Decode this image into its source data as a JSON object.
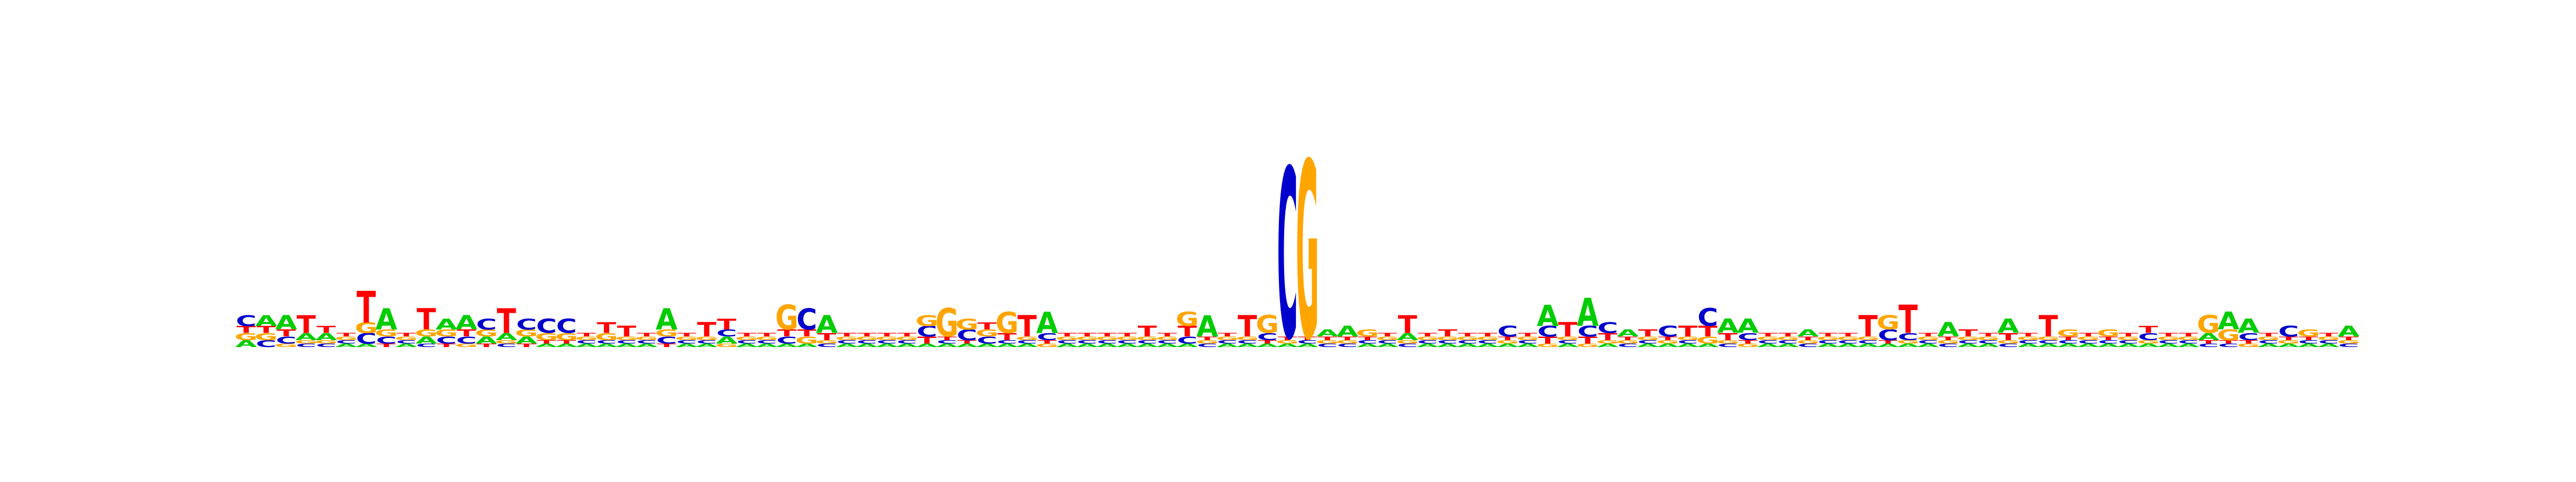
{
  "chart_data": {
    "type": "sequence-logo",
    "colors": {
      "A": "#00cc00",
      "C": "#0000cc",
      "G": "#ffa500",
      "T": "#ff0000"
    },
    "positions": [
      {
        "A": 0.02,
        "C": 0.03,
        "G": 0.02,
        "T": 0.02
      },
      {
        "A": 0.03,
        "C": 0.02,
        "G": 0.02,
        "T": 0.02
      },
      {
        "A": 0.04,
        "C": 0.02,
        "G": 0.01,
        "T": 0.02
      },
      {
        "A": 0.02,
        "C": 0.01,
        "G": 0.01,
        "T": 0.05
      },
      {
        "A": 0.02,
        "C": 0.01,
        "G": 0.01,
        "T": 0.02
      },
      {
        "A": 0.01,
        "C": 0.01,
        "G": 0.01,
        "T": 0.01
      },
      {
        "A": 0.01,
        "C": 0.03,
        "G": 0.03,
        "T": 0.09
      },
      {
        "A": 0.06,
        "C": 0.02,
        "G": 0.02,
        "T": 0.01
      },
      {
        "A": 0.01,
        "C": 0.01,
        "G": 0.01,
        "T": 0.01
      },
      {
        "A": 0.02,
        "C": 0.01,
        "G": 0.02,
        "T": 0.06
      },
      {
        "A": 0.03,
        "C": 0.02,
        "G": 0.02,
        "T": 0.01
      },
      {
        "A": 0.04,
        "C": 0.02,
        "G": 0.01,
        "T": 0.02
      },
      {
        "A": 0.02,
        "C": 0.03,
        "G": 0.02,
        "T": 0.01
      },
      {
        "A": 0.02,
        "C": 0.01,
        "G": 0.01,
        "T": 0.07
      },
      {
        "A": 0.02,
        "C": 0.03,
        "G": 0.02,
        "T": 0.01
      },
      {
        "A": 0.01,
        "C": 0.04,
        "G": 0.02,
        "T": 0.01
      },
      {
        "A": 0.01,
        "C": 0.04,
        "G": 0.02,
        "T": 0.01
      },
      {
        "A": 0.01,
        "C": 0.01,
        "G": 0.01,
        "T": 0.01
      },
      {
        "A": 0.01,
        "C": 0.01,
        "G": 0.02,
        "T": 0.03
      },
      {
        "A": 0.01,
        "C": 0.01,
        "G": 0.01,
        "T": 0.03
      },
      {
        "A": 0.01,
        "C": 0.01,
        "G": 0.01,
        "T": 0.01
      },
      {
        "A": 0.06,
        "C": 0.02,
        "G": 0.02,
        "T": 0.01
      },
      {
        "A": 0.01,
        "C": 0.01,
        "G": 0.01,
        "T": 0.01
      },
      {
        "A": 0.01,
        "C": 0.01,
        "G": 0.01,
        "T": 0.04
      },
      {
        "A": 0.02,
        "C": 0.02,
        "G": 0.01,
        "T": 0.03
      },
      {
        "A": 0.01,
        "C": 0.01,
        "G": 0.01,
        "T": 0.01
      },
      {
        "A": 0.01,
        "C": 0.01,
        "G": 0.01,
        "T": 0.01
      },
      {
        "A": 0.01,
        "C": 0.02,
        "G": 0.07,
        "T": 0.02
      },
      {
        "A": 0.01,
        "C": 0.06,
        "G": 0.02,
        "T": 0.02
      },
      {
        "A": 0.05,
        "C": 0.01,
        "G": 0.01,
        "T": 0.02
      },
      {
        "A": 0.01,
        "C": 0.01,
        "G": 0.01,
        "T": 0.01
      },
      {
        "A": 0.01,
        "C": 0.01,
        "G": 0.01,
        "T": 0.01
      },
      {
        "A": 0.01,
        "C": 0.01,
        "G": 0.01,
        "T": 0.01
      },
      {
        "A": 0.01,
        "C": 0.01,
        "G": 0.01,
        "T": 0.01
      },
      {
        "A": 0.01,
        "C": 0.03,
        "G": 0.03,
        "T": 0.02
      },
      {
        "A": 0.01,
        "C": 0.01,
        "G": 0.08,
        "T": 0.01
      },
      {
        "A": 0.01,
        "C": 0.03,
        "G": 0.03,
        "T": 0.01
      },
      {
        "A": 0.01,
        "C": 0.02,
        "G": 0.02,
        "T": 0.02
      },
      {
        "A": 0.01,
        "C": 0.01,
        "G": 0.06,
        "T": 0.02
      },
      {
        "A": 0.01,
        "C": 0.01,
        "G": 0.01,
        "T": 0.06
      },
      {
        "A": 0.06,
        "C": 0.02,
        "G": 0.01,
        "T": 0.01
      },
      {
        "A": 0.01,
        "C": 0.01,
        "G": 0.01,
        "T": 0.01
      },
      {
        "A": 0.01,
        "C": 0.01,
        "G": 0.01,
        "T": 0.01
      },
      {
        "A": 0.01,
        "C": 0.01,
        "G": 0.01,
        "T": 0.01
      },
      {
        "A": 0.01,
        "C": 0.01,
        "G": 0.01,
        "T": 0.01
      },
      {
        "A": 0.01,
        "C": 0.01,
        "G": 0.01,
        "T": 0.03
      },
      {
        "A": 0.01,
        "C": 0.01,
        "G": 0.01,
        "T": 0.01
      },
      {
        "A": 0.01,
        "C": 0.02,
        "G": 0.04,
        "T": 0.03
      },
      {
        "A": 0.06,
        "C": 0.01,
        "G": 0.01,
        "T": 0.01
      },
      {
        "A": 0.01,
        "C": 0.01,
        "G": 0.01,
        "T": 0.01
      },
      {
        "A": 0.01,
        "C": 0.01,
        "G": 0.01,
        "T": 0.06
      },
      {
        "A": 0.01,
        "C": 0.02,
        "G": 0.05,
        "T": 0.01
      },
      {
        "A": 0.01,
        "C": 0.48,
        "G": 0.01,
        "T": 0.01
      },
      {
        "A": 0.01,
        "C": 0.01,
        "G": 0.5,
        "T": 0.01
      },
      {
        "A": 0.02,
        "C": 0.01,
        "G": 0.01,
        "T": 0.01
      },
      {
        "A": 0.03,
        "C": 0.01,
        "G": 0.01,
        "T": 0.01
      },
      {
        "A": 0.01,
        "C": 0.01,
        "G": 0.02,
        "T": 0.01
      },
      {
        "A": 0.01,
        "C": 0.01,
        "G": 0.01,
        "T": 0.01
      },
      {
        "A": 0.02,
        "C": 0.01,
        "G": 0.01,
        "T": 0.05
      },
      {
        "A": 0.01,
        "C": 0.01,
        "G": 0.01,
        "T": 0.01
      },
      {
        "A": 0.01,
        "C": 0.01,
        "G": 0.01,
        "T": 0.02
      },
      {
        "A": 0.01,
        "C": 0.01,
        "G": 0.01,
        "T": 0.01
      },
      {
        "A": 0.01,
        "C": 0.01,
        "G": 0.01,
        "T": 0.01
      },
      {
        "A": 0.01,
        "C": 0.03,
        "G": 0.01,
        "T": 0.01
      },
      {
        "A": 0.01,
        "C": 0.01,
        "G": 0.01,
        "T": 0.01
      },
      {
        "A": 0.06,
        "C": 0.03,
        "G": 0.01,
        "T": 0.02
      },
      {
        "A": 0.01,
        "C": 0.01,
        "G": 0.01,
        "T": 0.04
      },
      {
        "A": 0.08,
        "C": 0.03,
        "G": 0.01,
        "T": 0.02
      },
      {
        "A": 0.01,
        "C": 0.03,
        "G": 0.01,
        "T": 0.02
      },
      {
        "A": 0.02,
        "C": 0.01,
        "G": 0.01,
        "T": 0.01
      },
      {
        "A": 0.01,
        "C": 0.01,
        "G": 0.01,
        "T": 0.02
      },
      {
        "A": 0.01,
        "C": 0.03,
        "G": 0.01,
        "T": 0.01
      },
      {
        "A": 0.01,
        "C": 0.01,
        "G": 0.01,
        "T": 0.03
      },
      {
        "A": 0.01,
        "C": 0.05,
        "G": 0.02,
        "T": 0.03
      },
      {
        "A": 0.04,
        "C": 0.01,
        "G": 0.01,
        "T": 0.02
      },
      {
        "A": 0.04,
        "C": 0.02,
        "G": 0.01,
        "T": 0.01
      },
      {
        "A": 0.01,
        "C": 0.01,
        "G": 0.01,
        "T": 0.01
      },
      {
        "A": 0.01,
        "C": 0.01,
        "G": 0.01,
        "T": 0.01
      },
      {
        "A": 0.02,
        "C": 0.01,
        "G": 0.01,
        "T": 0.01
      },
      {
        "A": 0.01,
        "C": 0.01,
        "G": 0.01,
        "T": 0.01
      },
      {
        "A": 0.01,
        "C": 0.01,
        "G": 0.01,
        "T": 0.01
      },
      {
        "A": 0.01,
        "C": 0.01,
        "G": 0.01,
        "T": 0.06
      },
      {
        "A": 0.01,
        "C": 0.03,
        "G": 0.04,
        "T": 0.01
      },
      {
        "A": 0.01,
        "C": 0.02,
        "G": 0.01,
        "T": 0.08
      },
      {
        "A": 0.01,
        "C": 0.01,
        "G": 0.01,
        "T": 0.01
      },
      {
        "A": 0.04,
        "C": 0.01,
        "G": 0.01,
        "T": 0.01
      },
      {
        "A": 0.01,
        "C": 0.01,
        "G": 0.01,
        "T": 0.02
      },
      {
        "A": 0.01,
        "C": 0.01,
        "G": 0.01,
        "T": 0.01
      },
      {
        "A": 0.04,
        "C": 0.01,
        "G": 0.01,
        "T": 0.02
      },
      {
        "A": 0.01,
        "C": 0.01,
        "G": 0.01,
        "T": 0.01
      },
      {
        "A": 0.01,
        "C": 0.01,
        "G": 0.01,
        "T": 0.06
      },
      {
        "A": 0.01,
        "C": 0.01,
        "G": 0.02,
        "T": 0.01
      },
      {
        "A": 0.01,
        "C": 0.01,
        "G": 0.01,
        "T": 0.01
      },
      {
        "A": 0.01,
        "C": 0.01,
        "G": 0.02,
        "T": 0.01
      },
      {
        "A": 0.01,
        "C": 0.01,
        "G": 0.01,
        "T": 0.01
      },
      {
        "A": 0.01,
        "C": 0.02,
        "G": 0.01,
        "T": 0.02
      },
      {
        "A": 0.01,
        "C": 0.01,
        "G": 0.01,
        "T": 0.01
      },
      {
        "A": 0.01,
        "C": 0.01,
        "G": 0.01,
        "T": 0.01
      },
      {
        "A": 0.02,
        "C": 0.01,
        "G": 0.05,
        "T": 0.01
      },
      {
        "A": 0.05,
        "C": 0.01,
        "G": 0.03,
        "T": 0.01
      },
      {
        "A": 0.04,
        "C": 0.02,
        "G": 0.01,
        "T": 0.01
      },
      {
        "A": 0.01,
        "C": 0.01,
        "G": 0.01,
        "T": 0.01
      },
      {
        "A": 0.01,
        "C": 0.03,
        "G": 0.01,
        "T": 0.01
      },
      {
        "A": 0.01,
        "C": 0.01,
        "G": 0.02,
        "T": 0.01
      },
      {
        "A": 0.01,
        "C": 0.01,
        "G": 0.01,
        "T": 0.01
      },
      {
        "A": 0.03,
        "C": 0.01,
        "G": 0.01,
        "T": 0.01
      }
    ]
  }
}
